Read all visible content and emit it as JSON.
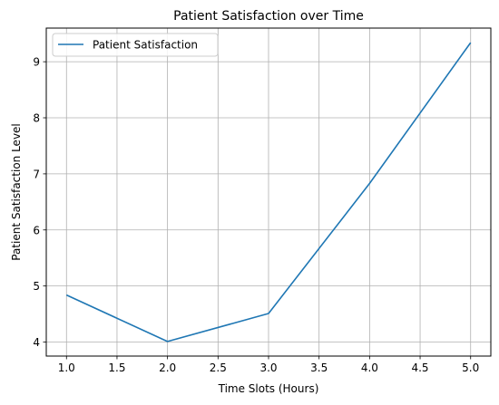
{
  "chart_data": {
    "type": "line",
    "title": "Patient Satisfaction over Time",
    "xlabel": "Time Slots (Hours)",
    "ylabel": "Patient Satisfaction Level",
    "xlim": [
      0.8,
      5.2
    ],
    "ylim": [
      3.75,
      9.6
    ],
    "x_ticks": [
      1.0,
      1.5,
      2.0,
      2.5,
      3.0,
      3.5,
      4.0,
      4.5,
      5.0
    ],
    "x_tick_labels": [
      "1.0",
      "1.5",
      "2.0",
      "2.5",
      "3.0",
      "3.5",
      "4.0",
      "4.5",
      "5.0"
    ],
    "y_ticks": [
      4,
      5,
      6,
      7,
      8,
      9
    ],
    "y_tick_labels": [
      "4",
      "5",
      "6",
      "7",
      "8",
      "9"
    ],
    "grid": true,
    "legend_position": "top-left",
    "series": [
      {
        "name": "Patient Satisfaction",
        "color": "#1f77b4",
        "x": [
          1,
          2,
          3,
          4,
          5
        ],
        "y": [
          4.84,
          4.01,
          4.51,
          6.83,
          9.34
        ]
      }
    ]
  }
}
